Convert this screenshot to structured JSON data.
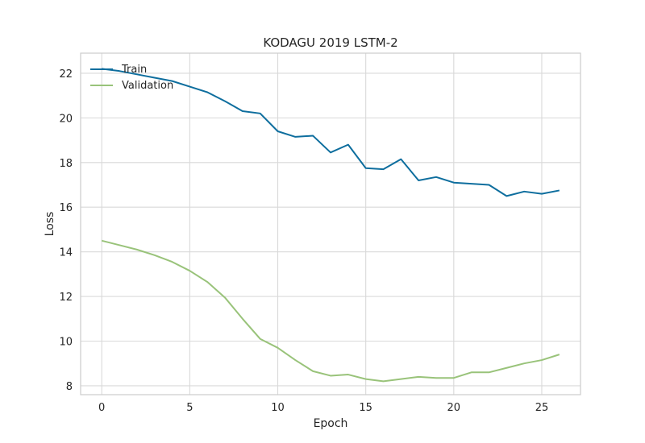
{
  "chart_data": {
    "type": "line",
    "title": "KODAGU 2019 LSTM-2",
    "xlabel": "Epoch",
    "ylabel": "Loss",
    "xlim": [
      -1.2,
      27.2
    ],
    "ylim": [
      7.6,
      22.9
    ],
    "xticks": [
      0,
      5,
      10,
      15,
      20,
      25
    ],
    "yticks": [
      8,
      10,
      12,
      14,
      16,
      18,
      20,
      22
    ],
    "grid": true,
    "legend": "top-left",
    "x": [
      0,
      1,
      2,
      3,
      4,
      5,
      6,
      7,
      8,
      9,
      10,
      11,
      12,
      13,
      14,
      15,
      16,
      17,
      18,
      19,
      20,
      21,
      22,
      23,
      24,
      25,
      26
    ],
    "series": [
      {
        "name": "Train",
        "color": "#0e6e9e",
        "values": [
          22.2,
          22.1,
          21.95,
          21.8,
          21.65,
          21.4,
          21.15,
          20.75,
          20.3,
          20.2,
          19.4,
          19.15,
          19.2,
          18.45,
          18.8,
          17.75,
          17.7,
          18.15,
          17.2,
          17.35,
          17.1,
          17.05,
          17.0,
          16.5,
          16.7,
          16.6,
          16.75
        ]
      },
      {
        "name": "Validation",
        "color": "#99c37a",
        "values": [
          14.5,
          14.3,
          14.1,
          13.85,
          13.55,
          13.15,
          12.65,
          11.95,
          11.0,
          10.1,
          9.7,
          9.15,
          8.65,
          8.45,
          8.5,
          8.3,
          8.2,
          8.3,
          8.4,
          8.35,
          8.35,
          8.6,
          8.6,
          8.8,
          9.0,
          9.15,
          9.4
        ]
      }
    ]
  }
}
